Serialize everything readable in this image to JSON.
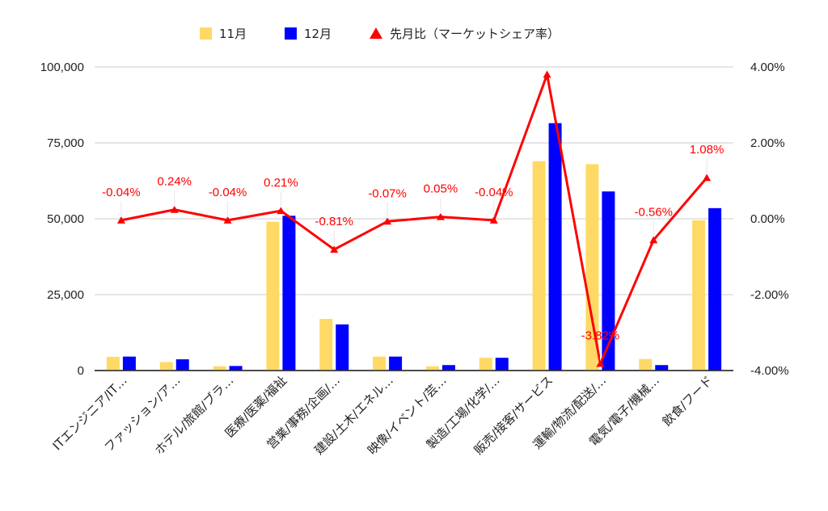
{
  "chart_data": {
    "type": "bar",
    "categories": [
      "ITエンジニア/IT…",
      "ファッション/ア…",
      "ホテル/旅館/ブラ…",
      "医療/医薬/福祉",
      "営業/事務/企画/…",
      "建設/土木/エネル…",
      "映像/イベント/芸…",
      "製造/工場/化学/…",
      "販売/接客/サービス",
      "運輸/物流/配送/…",
      "電気/電子/機械…",
      "飲食/フード"
    ],
    "series": [
      {
        "name": "11月",
        "kind": "bar",
        "axis": "left",
        "color": "#ffd966",
        "values": [
          4500,
          2800,
          1400,
          49000,
          17000,
          4600,
          1400,
          4200,
          69000,
          68000,
          3800,
          49500
        ]
      },
      {
        "name": "12月",
        "kind": "bar",
        "axis": "left",
        "color": "#0000ff",
        "values": [
          4600,
          3700,
          1500,
          51000,
          15200,
          4600,
          1800,
          4200,
          81500,
          59000,
          1800,
          53500
        ]
      },
      {
        "name": "先月比（マーケットシェア率）",
        "kind": "line",
        "axis": "right",
        "color": "#ff0000",
        "values": [
          -0.04,
          0.24,
          -0.04,
          0.21,
          -0.81,
          -0.07,
          0.05,
          -0.04,
          3.8,
          -3.82,
          -0.56,
          1.08
        ]
      }
    ],
    "line_labels": [
      "-0.04%",
      "0.24%",
      "-0.04%",
      "0.21%",
      "-0.81%",
      "-0.07%",
      "0.05%",
      "-0.04%",
      "",
      "-3.82%",
      "-0.56%",
      "1.08%"
    ],
    "ylim": [
      0,
      100000
    ],
    "y_ticks": [
      0,
      25000,
      50000,
      75000,
      100000
    ],
    "y_tick_labels": [
      "0",
      "25,000",
      "50,000",
      "75,000",
      "100,000"
    ],
    "y2lim": [
      -4,
      4
    ],
    "y2_ticks": [
      -4,
      -2,
      0,
      2,
      4
    ],
    "y2_tick_labels": [
      "-4.00%",
      "-2.00%",
      "0.00%",
      "2.00%",
      "4.00%"
    ],
    "legend_position": "top",
    "grid": true
  }
}
